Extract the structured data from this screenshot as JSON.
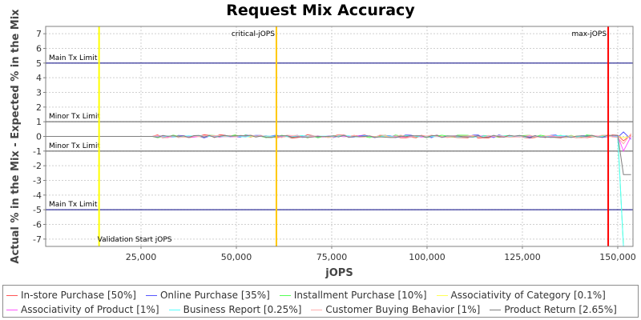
{
  "chart_data": {
    "type": "line",
    "title": "Request Mix Accuracy",
    "xlabel": "jOPS",
    "ylabel": "Actual % in the Mix - Expected % in the Mix",
    "xlim": [
      0,
      154000
    ],
    "ylim": [
      -7.5,
      7.5
    ],
    "x_ticks": [
      25000,
      50000,
      75000,
      100000,
      125000,
      150000
    ],
    "x_tick_labels": [
      "25,000",
      "50,000",
      "75,000",
      "100,000",
      "125,000",
      "150,000"
    ],
    "y_ticks": [
      7,
      6,
      5,
      4,
      3,
      2,
      1,
      0,
      -1,
      -2,
      -3,
      -4,
      -5,
      -6,
      -7
    ],
    "y_tick_labels": [
      "7",
      "6",
      "5",
      "4",
      "3",
      "2",
      "1",
      "0",
      "-1",
      "-2",
      "-3",
      "-4",
      "-5",
      "-6",
      "-7"
    ],
    "grid": true,
    "legend_position": "bottom",
    "horizontal_lines": [
      {
        "label": "Main Tx Limit",
        "y": 5,
        "color": "#000080"
      },
      {
        "label": "Minor Tx Limit",
        "y": 1,
        "color": "#555555"
      },
      {
        "label": "Minor Tx Limit",
        "y": -1,
        "color": "#555555"
      },
      {
        "label": "Main Tx Limit",
        "y": -5,
        "color": "#000080"
      }
    ],
    "vertical_lines": [
      {
        "label": "Validation Start jOPS",
        "x": 14000,
        "color": "#ffff00",
        "label_pos": "bottom"
      },
      {
        "label": "critical-jOPS",
        "x": 60500,
        "color": "#ffc800",
        "label_pos": "top"
      },
      {
        "label": "max-jOPS",
        "x": 147500,
        "color": "#ff0000",
        "label_pos": "top"
      }
    ],
    "x_noise_start": 28000,
    "x_noise_end": 150000,
    "series": [
      {
        "name": "In-store Purchase [50%]",
        "color": "#ff5555",
        "amp": 0.12,
        "tail": [
          -0.3,
          0.1
        ]
      },
      {
        "name": "Online Purchase [35%]",
        "color": "#5555ff",
        "amp": 0.1,
        "tail": [
          0.3,
          -0.2
        ]
      },
      {
        "name": "Installment Purchase [10%]",
        "color": "#55ff55",
        "amp": 0.1,
        "tail": [
          -7.5,
          -7.5
        ]
      },
      {
        "name": "Associativity of Category [0.1%]",
        "color": "#ffff55",
        "amp": 0.02,
        "tail": [
          -0.1,
          0.0
        ]
      },
      {
        "name": "Associativity of Product [1%]",
        "color": "#ff55ff",
        "amp": 0.05,
        "tail": [
          -1.0,
          0.0
        ]
      },
      {
        "name": "Business Report [0.25%]",
        "color": "#55ffff",
        "amp": 0.05,
        "tail": [
          -7.5,
          -7.5
        ]
      },
      {
        "name": "Customer Buying Behavior [1%]",
        "color": "#ffafaf",
        "amp": 0.1,
        "tail": [
          -0.5,
          0.2
        ]
      },
      {
        "name": "Product Return [2.65%]",
        "color": "#808080",
        "amp": 0.08,
        "tail": [
          -2.6,
          -2.6
        ]
      }
    ]
  }
}
